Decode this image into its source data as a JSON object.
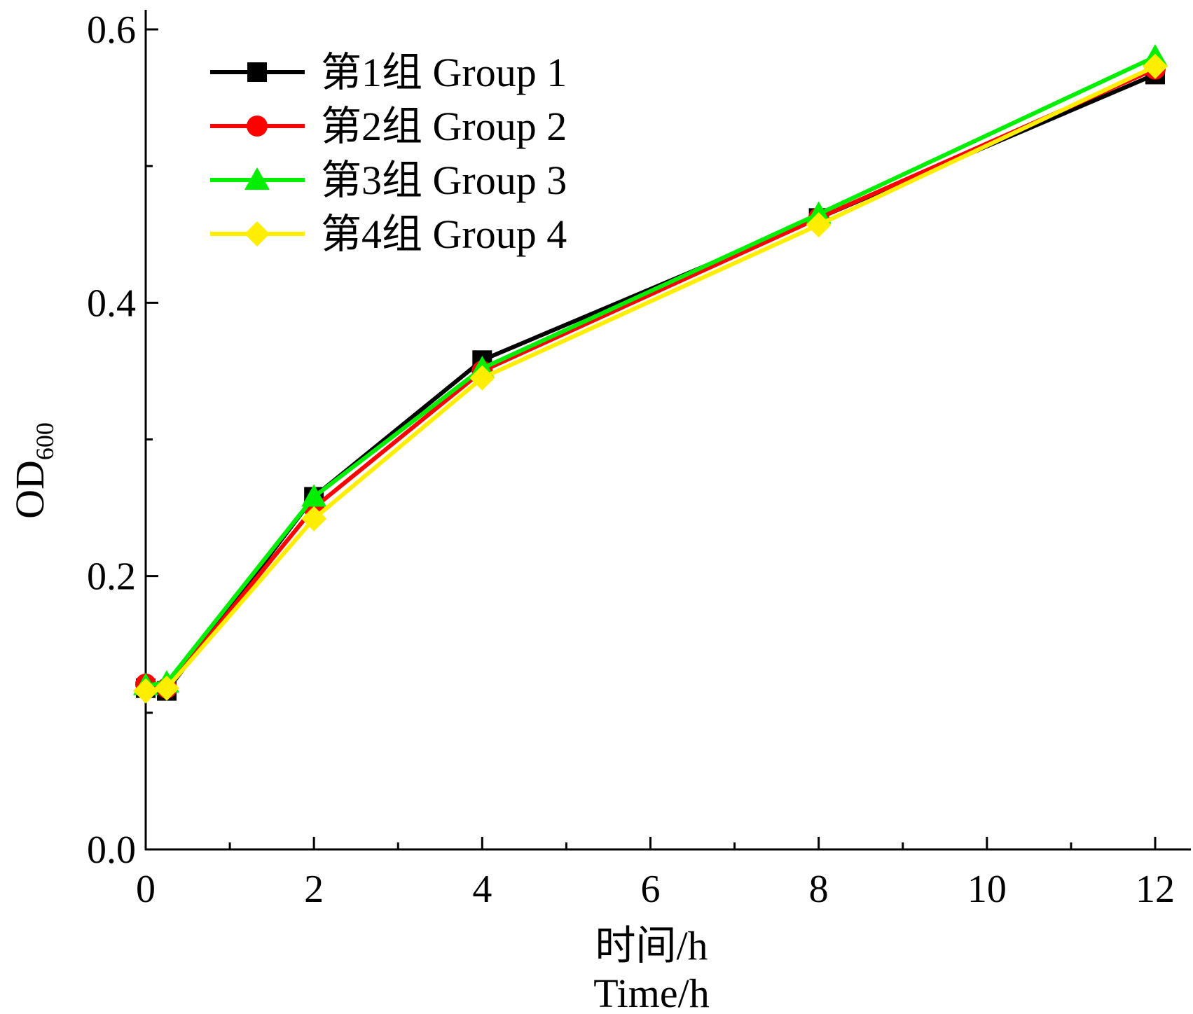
{
  "chart_data": {
    "type": "line",
    "title": "",
    "xlabel": [
      "时间/h",
      "Time/h"
    ],
    "ylabel": {
      "main": "OD",
      "subscript": "600"
    },
    "xlim": [
      0,
      12.4
    ],
    "ylim": [
      0,
      0.62
    ],
    "xticks": [
      0,
      2,
      4,
      6,
      8,
      10,
      12
    ],
    "xtick_labels": [
      "0",
      "2",
      "4",
      "6",
      "8",
      "10",
      "12"
    ],
    "yticks": [
      0.0,
      0.2,
      0.4,
      0.6
    ],
    "ytick_labels": [
      "0.0",
      "0.2",
      "0.4",
      "0.6"
    ],
    "grid": false,
    "legend_position": "top-left",
    "series": [
      {
        "name": "第1组 Group 1",
        "color": "#000000",
        "marker": "square",
        "x": [
          0,
          0.25,
          2,
          4,
          8,
          12
        ],
        "y": [
          0.118,
          0.116,
          0.258,
          0.358,
          0.462,
          0.567
        ]
      },
      {
        "name": "第2组 Group 2",
        "color": "#ff0000",
        "marker": "circle",
        "x": [
          0,
          0.25,
          2,
          4,
          8,
          12
        ],
        "y": [
          0.121,
          0.118,
          0.25,
          0.35,
          0.462,
          0.571
        ]
      },
      {
        "name": "第3组 Group 3",
        "color": "#00ee00",
        "marker": "triangle",
        "x": [
          0,
          0.25,
          2,
          4,
          8,
          12
        ],
        "y": [
          0.12,
          0.122,
          0.258,
          0.352,
          0.465,
          0.58
        ]
      },
      {
        "name": "第4组 Group 4",
        "color": "#ffee00",
        "marker": "diamond",
        "x": [
          0,
          0.25,
          2,
          4,
          8,
          12
        ],
        "y": [
          0.116,
          0.118,
          0.242,
          0.345,
          0.457,
          0.573
        ]
      }
    ]
  }
}
